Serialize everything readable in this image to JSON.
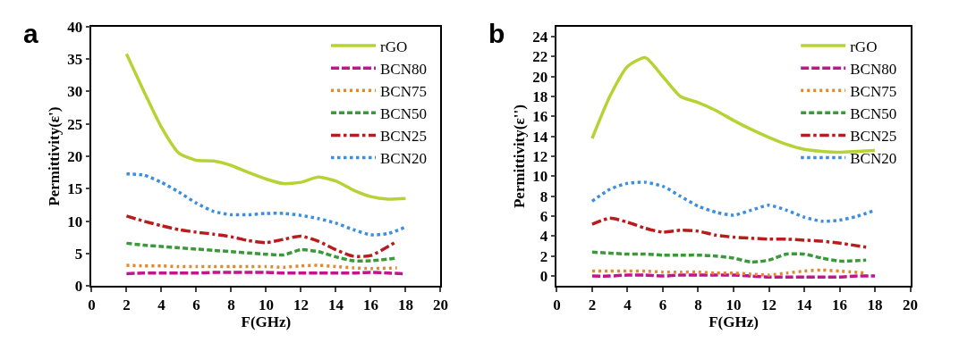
{
  "chart_data": [
    {
      "type": "line",
      "title": "a",
      "xlabel": "F(GHz)",
      "ylabel": "Permittivity(ε')",
      "x": [
        2,
        3,
        4,
        5,
        6,
        7,
        8,
        9,
        10,
        11,
        12,
        13,
        14,
        15,
        16,
        17,
        18
      ],
      "xlim": [
        0,
        20
      ],
      "xticks": [
        0,
        2,
        4,
        6,
        8,
        10,
        12,
        14,
        16,
        18,
        20
      ],
      "ylim": [
        0,
        40
      ],
      "yticks": [
        0,
        5,
        10,
        15,
        20,
        25,
        30,
        35,
        40
      ],
      "grid": false,
      "legend": "top right",
      "marker": "none",
      "series": [
        {
          "name": "rGO",
          "color": "#b5d334",
          "line_style": "solid",
          "values": [
            35.8,
            30,
            24.5,
            20.5,
            19.4,
            19.3,
            18.6,
            17.5,
            16.5,
            15.8,
            16.0,
            16.8,
            16.2,
            14.8,
            13.8,
            13.4,
            13.5
          ]
        },
        {
          "name": "BCN80",
          "color": "#c0158c",
          "line_style": "longdash",
          "values": [
            1.9,
            2.0,
            2.0,
            2.0,
            2.0,
            2.1,
            2.1,
            2.1,
            2.1,
            2.0,
            2.0,
            2.0,
            2.0,
            2.0,
            2.1,
            2.0,
            1.9
          ]
        },
        {
          "name": "BCN75",
          "color": "#e08a30",
          "line_style": "sparse_dotted",
          "x": [
            2,
            3,
            4,
            5,
            6,
            7,
            8,
            9,
            10,
            11,
            12,
            13,
            14,
            15,
            16,
            17.5
          ],
          "values": [
            3.2,
            3.1,
            3.1,
            3.0,
            3.0,
            3.0,
            3.0,
            3.0,
            3.0,
            2.9,
            3.1,
            3.2,
            3.0,
            2.8,
            2.7,
            2.8
          ]
        },
        {
          "name": "BCN50",
          "color": "#3a9a3a",
          "line_style": "dashed",
          "x": [
            2,
            3,
            4,
            5,
            6,
            7,
            8,
            9,
            10,
            11,
            12,
            13,
            14,
            15,
            16,
            17.5
          ],
          "values": [
            6.6,
            6.3,
            6.1,
            5.9,
            5.7,
            5.5,
            5.3,
            5.1,
            4.9,
            4.8,
            5.6,
            5.3,
            4.5,
            3.9,
            3.9,
            4.3
          ]
        },
        {
          "name": "BCN25",
          "color": "#b81c1c",
          "line_style": "dashdot",
          "x": [
            2,
            3,
            4,
            5,
            6,
            7,
            8,
            9,
            10,
            11,
            12,
            13,
            14,
            15,
            16,
            17.5
          ],
          "values": [
            10.8,
            10.0,
            9.3,
            8.7,
            8.3,
            8.0,
            7.6,
            7.0,
            6.7,
            7.2,
            7.7,
            6.9,
            5.6,
            4.6,
            4.7,
            6.9
          ]
        },
        {
          "name": "BCN20",
          "color": "#3c8ee0",
          "line_style": "dotted",
          "values": [
            17.3,
            17.1,
            16.0,
            14.5,
            12.8,
            11.5,
            11.0,
            11.0,
            11.2,
            11.2,
            10.9,
            10.4,
            9.7,
            8.7,
            7.9,
            8.1,
            9.1
          ]
        }
      ]
    },
    {
      "type": "line",
      "title": "b",
      "xlabel": "F(GHz)",
      "ylabel": "Permittivity(ε'')",
      "x": [
        2,
        3,
        4,
        5,
        6,
        7,
        8,
        9,
        10,
        11,
        12,
        13,
        14,
        15,
        16,
        17,
        18
      ],
      "xlim": [
        0,
        20
      ],
      "xticks": [
        0,
        2,
        4,
        6,
        8,
        10,
        12,
        14,
        16,
        18,
        20
      ],
      "ylim": [
        -1,
        25
      ],
      "yticks": [
        0,
        2,
        4,
        6,
        8,
        10,
        12,
        14,
        16,
        18,
        20,
        22,
        24
      ],
      "grid": false,
      "legend": "top right",
      "marker": "none",
      "series": [
        {
          "name": "rGO",
          "color": "#b5d334",
          "line_style": "solid",
          "values": [
            13.8,
            18.0,
            21.0,
            21.9,
            20.0,
            18.0,
            17.4,
            16.6,
            15.6,
            14.7,
            13.9,
            13.2,
            12.7,
            12.5,
            12.4,
            12.5,
            12.6
          ]
        },
        {
          "name": "BCN80",
          "color": "#c0158c",
          "line_style": "longdash",
          "values": [
            0.0,
            0.0,
            0.1,
            0.1,
            0.0,
            0.1,
            0.1,
            0.1,
            0.1,
            0.0,
            -0.1,
            -0.1,
            -0.1,
            -0.1,
            -0.1,
            0.0,
            0.0
          ]
        },
        {
          "name": "BCN75",
          "color": "#e08a30",
          "line_style": "sparse_dotted",
          "x": [
            2,
            3,
            4,
            5,
            6,
            7,
            8,
            9,
            10,
            11,
            12,
            13,
            14,
            15,
            16,
            17.5
          ],
          "values": [
            0.5,
            0.5,
            0.5,
            0.5,
            0.4,
            0.4,
            0.4,
            0.3,
            0.3,
            0.2,
            0.1,
            0.3,
            0.5,
            0.6,
            0.5,
            0.3
          ]
        },
        {
          "name": "BCN50",
          "color": "#3a9a3a",
          "line_style": "dashed",
          "x": [
            2,
            3,
            4,
            5,
            6,
            7,
            8,
            9,
            10,
            11,
            12,
            13,
            14,
            15,
            16,
            17.5
          ],
          "values": [
            2.4,
            2.3,
            2.2,
            2.2,
            2.1,
            2.1,
            2.1,
            2.0,
            1.8,
            1.4,
            1.6,
            2.2,
            2.2,
            1.8,
            1.5,
            1.6
          ]
        },
        {
          "name": "BCN25",
          "color": "#b81c1c",
          "line_style": "dashdot",
          "x": [
            2,
            3,
            4,
            5,
            6,
            7,
            8,
            9,
            10,
            11,
            12,
            13,
            14,
            15,
            16,
            17.5
          ],
          "values": [
            5.2,
            5.8,
            5.4,
            4.8,
            4.4,
            4.6,
            4.5,
            4.1,
            3.9,
            3.8,
            3.7,
            3.7,
            3.6,
            3.5,
            3.3,
            2.9
          ]
        },
        {
          "name": "BCN20",
          "color": "#3c8ee0",
          "line_style": "dotted",
          "values": [
            7.5,
            8.7,
            9.3,
            9.4,
            9.0,
            8.0,
            7.0,
            6.4,
            6.1,
            6.6,
            7.1,
            6.6,
            5.9,
            5.5,
            5.6,
            6.0,
            6.6
          ]
        }
      ]
    }
  ]
}
